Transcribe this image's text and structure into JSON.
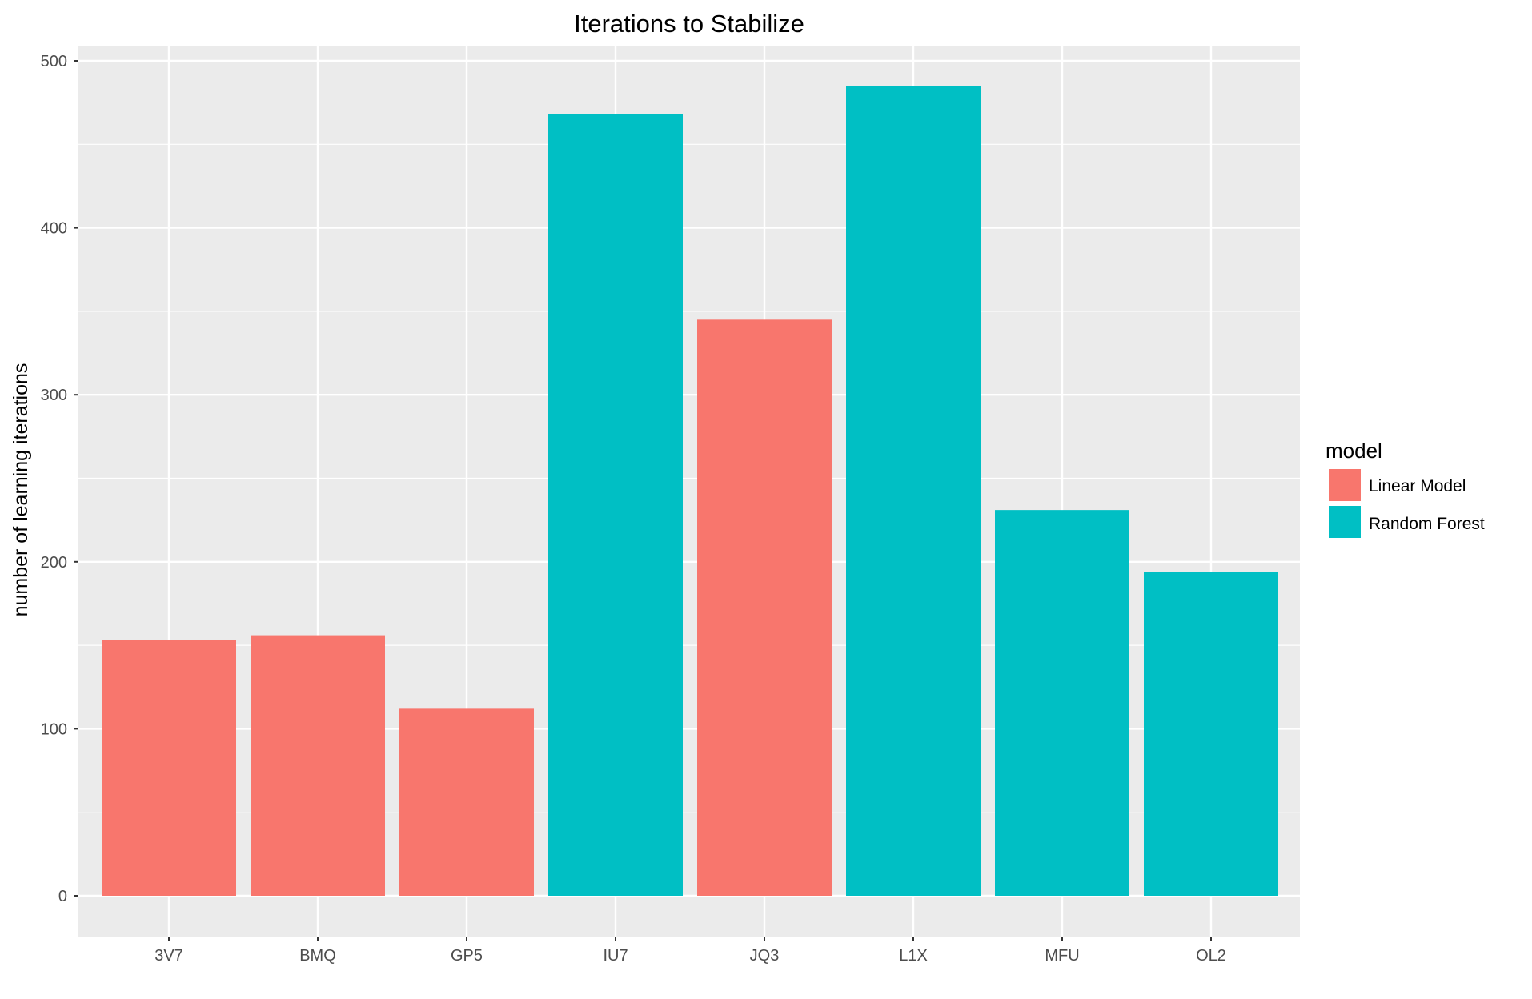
{
  "chart_data": {
    "type": "bar",
    "title": "Iterations to Stabilize",
    "xlabel": "",
    "ylabel": "number of learning iterations",
    "ylim": [
      0,
      500
    ],
    "y_ticks": [
      "0",
      "100",
      "200",
      "300",
      "400",
      "500"
    ],
    "grid": true,
    "legend_position": "right",
    "legend": {
      "title": "model",
      "entries": [
        {
          "label": "Linear Model",
          "color": "#F8766D"
        },
        {
          "label": "Random Forest",
          "color": "#00BFC4"
        }
      ]
    },
    "categories": [
      "3V7",
      "BMQ",
      "GP5",
      "IU7",
      "JQ3",
      "L1X",
      "MFU",
      "OL2"
    ],
    "values": [
      153,
      156,
      112,
      468,
      345,
      485,
      231,
      194
    ],
    "groups": [
      "Linear Model",
      "Linear Model",
      "Linear Model",
      "Random Forest",
      "Linear Model",
      "Random Forest",
      "Random Forest",
      "Random Forest"
    ],
    "colors": {
      "panel_background": "#EBEBEB",
      "grid": "#FFFFFF",
      "linear": "#F8766D",
      "forest": "#00BFC4"
    }
  }
}
